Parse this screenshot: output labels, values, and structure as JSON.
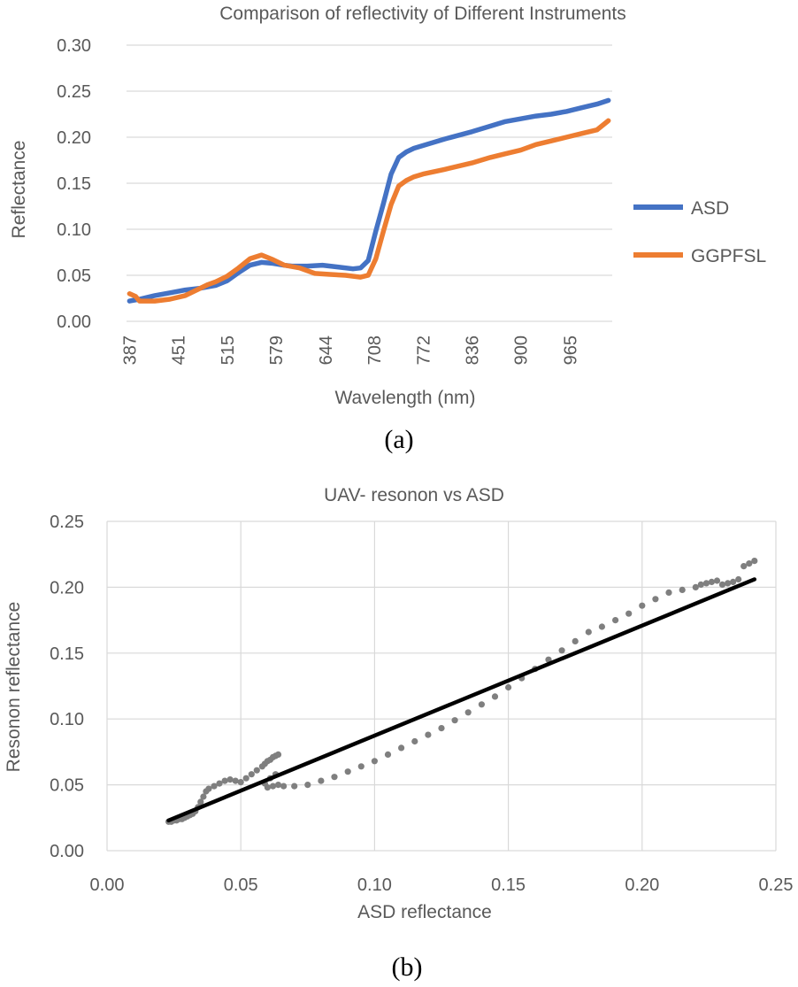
{
  "chart_data": [
    {
      "type": "line",
      "title": "Comparison of reflectivity of Different Instruments",
      "xlabel": "Wavelength (nm)",
      "ylabel": "Reflectance",
      "caption": "(a)",
      "xlim": [
        383,
        1020
      ],
      "ylim": [
        0,
        0.3
      ],
      "x_ticks": [
        "387",
        "451",
        "515",
        "579",
        "644",
        "708",
        "772",
        "836",
        "900",
        "965"
      ],
      "y_ticks": [
        "0.30",
        "0.25",
        "0.20",
        "0.15",
        "0.10",
        "0.05",
        "0.00"
      ],
      "grid": "horizontal",
      "legend_position": "right",
      "series": [
        {
          "name": "ASD",
          "color": "#4472C4",
          "x": [
            387,
            400,
            420,
            440,
            460,
            480,
            500,
            515,
            530,
            545,
            560,
            575,
            590,
            600,
            620,
            640,
            660,
            680,
            690,
            700,
            710,
            720,
            730,
            740,
            750,
            760,
            772,
            800,
            836,
            860,
            880,
            900,
            920,
            940,
            960,
            980,
            1000,
            1015
          ],
          "y": [
            0.022,
            0.024,
            0.028,
            0.031,
            0.034,
            0.036,
            0.039,
            0.044,
            0.053,
            0.061,
            0.064,
            0.063,
            0.061,
            0.06,
            0.06,
            0.061,
            0.059,
            0.057,
            0.058,
            0.066,
            0.098,
            0.128,
            0.16,
            0.178,
            0.184,
            0.188,
            0.191,
            0.198,
            0.206,
            0.212,
            0.217,
            0.22,
            0.223,
            0.225,
            0.228,
            0.232,
            0.236,
            0.24
          ]
        },
        {
          "name": "GGPFSL",
          "color": "#ED7D31",
          "x": [
            387,
            395,
            400,
            420,
            440,
            460,
            475,
            490,
            500,
            515,
            530,
            545,
            560,
            575,
            590,
            610,
            630,
            650,
            670,
            690,
            700,
            710,
            720,
            730,
            740,
            750,
            760,
            772,
            800,
            836,
            860,
            880,
            900,
            920,
            940,
            960,
            980,
            1000,
            1015
          ],
          "y": [
            0.03,
            0.027,
            0.022,
            0.022,
            0.024,
            0.028,
            0.034,
            0.04,
            0.043,
            0.049,
            0.058,
            0.068,
            0.072,
            0.067,
            0.061,
            0.058,
            0.052,
            0.051,
            0.05,
            0.048,
            0.05,
            0.068,
            0.098,
            0.127,
            0.147,
            0.153,
            0.157,
            0.16,
            0.165,
            0.172,
            0.178,
            0.182,
            0.186,
            0.192,
            0.196,
            0.2,
            0.204,
            0.208,
            0.218
          ]
        }
      ]
    },
    {
      "type": "scatter",
      "title": "UAV- resonon vs ASD",
      "xlabel": "ASD reflectance",
      "ylabel": "Resonon reflectance",
      "caption": "(b)",
      "xlim": [
        0,
        0.25
      ],
      "ylim": [
        0,
        0.25
      ],
      "x_ticks": [
        "0.00",
        "0.05",
        "0.10",
        "0.15",
        "0.20",
        "0.25"
      ],
      "y_ticks": [
        "0.25",
        "0.20",
        "0.15",
        "0.10",
        "0.05",
        "0.00"
      ],
      "grid": "both",
      "points_color": "#7F7F7F",
      "trendline": {
        "color": "#000000",
        "x": [
          0.023,
          0.242
        ],
        "y": [
          0.023,
          0.206
        ]
      },
      "series": [
        {
          "name": "points",
          "x": [
            0.023,
            0.024,
            0.025,
            0.026,
            0.027,
            0.028,
            0.029,
            0.03,
            0.031,
            0.032,
            0.033,
            0.034,
            0.035,
            0.036,
            0.037,
            0.038,
            0.04,
            0.042,
            0.044,
            0.046,
            0.048,
            0.05,
            0.052,
            0.054,
            0.056,
            0.058,
            0.059,
            0.06,
            0.061,
            0.062,
            0.063,
            0.064,
            0.06,
            0.062,
            0.064,
            0.059,
            0.061,
            0.063,
            0.066,
            0.07,
            0.075,
            0.08,
            0.085,
            0.09,
            0.095,
            0.1,
            0.105,
            0.11,
            0.115,
            0.12,
            0.125,
            0.13,
            0.135,
            0.14,
            0.145,
            0.15,
            0.155,
            0.16,
            0.165,
            0.17,
            0.175,
            0.18,
            0.185,
            0.19,
            0.195,
            0.2,
            0.205,
            0.21,
            0.215,
            0.22,
            0.222,
            0.224,
            0.226,
            0.228,
            0.23,
            0.232,
            0.234,
            0.236,
            0.238,
            0.24,
            0.242
          ],
          "y": [
            0.022,
            0.022,
            0.023,
            0.023,
            0.024,
            0.024,
            0.025,
            0.026,
            0.027,
            0.028,
            0.03,
            0.033,
            0.037,
            0.041,
            0.045,
            0.047,
            0.049,
            0.051,
            0.053,
            0.054,
            0.053,
            0.052,
            0.055,
            0.058,
            0.061,
            0.064,
            0.066,
            0.068,
            0.069,
            0.071,
            0.072,
            0.073,
            0.048,
            0.049,
            0.05,
            0.051,
            0.055,
            0.058,
            0.049,
            0.049,
            0.05,
            0.053,
            0.056,
            0.06,
            0.064,
            0.068,
            0.073,
            0.078,
            0.083,
            0.088,
            0.093,
            0.099,
            0.105,
            0.111,
            0.117,
            0.124,
            0.131,
            0.138,
            0.145,
            0.152,
            0.159,
            0.166,
            0.17,
            0.175,
            0.18,
            0.186,
            0.191,
            0.196,
            0.198,
            0.2,
            0.202,
            0.203,
            0.204,
            0.205,
            0.202,
            0.203,
            0.204,
            0.206,
            0.216,
            0.218,
            0.22
          ]
        }
      ]
    }
  ]
}
